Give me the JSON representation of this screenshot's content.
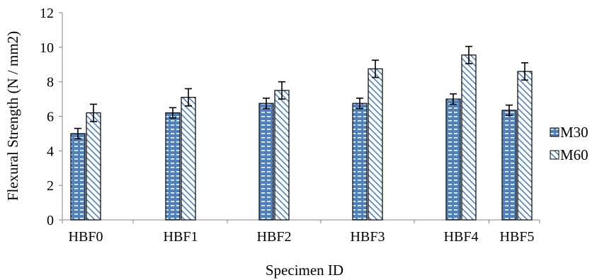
{
  "chart_data": {
    "type": "bar",
    "title": "",
    "xlabel": "Specimen ID",
    "ylabel": "Flexural Strength (N / mm2)",
    "ylim": [
      0,
      12
    ],
    "yticks": [
      "0",
      "2",
      "4",
      "6",
      "8",
      "10",
      "12"
    ],
    "grid": false,
    "legend_position": "right",
    "categories": [
      "HBF0",
      "HBF1",
      "HBF2",
      "HBF3",
      "HBF4",
      "HBF5"
    ],
    "series": [
      {
        "name": "M30",
        "values": [
          5.0,
          6.2,
          6.75,
          6.75,
          7.0,
          6.35
        ],
        "errors": [
          0.3,
          0.3,
          0.3,
          0.3,
          0.3,
          0.3
        ],
        "color": "#4f81bd",
        "pattern": "brick-dash"
      },
      {
        "name": "M60",
        "values": [
          6.2,
          7.1,
          7.5,
          8.75,
          9.55,
          8.6
        ],
        "errors": [
          0.5,
          0.5,
          0.5,
          0.5,
          0.5,
          0.5
        ],
        "color": "#4f81bd",
        "pattern": "diagonal-hatch"
      }
    ]
  }
}
